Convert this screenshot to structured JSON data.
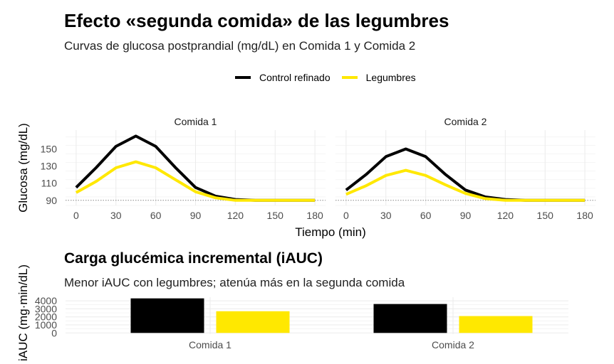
{
  "title": "Efecto «segunda comida» de las legumbres",
  "subtitle": "Curvas de glucosa postprandial (mg/dL) en Comida 1 y Comida 2",
  "colors": {
    "control": "#000000",
    "legumes": "#FFE800",
    "grid": "#EBEBEB",
    "axis_text": "#4D4D4D"
  },
  "legend": [
    {
      "label": "Control refinado",
      "color": "#000000"
    },
    {
      "label": "Legumbres",
      "color": "#FFE800"
    }
  ],
  "chart_data": [
    {
      "type": "line",
      "facets": [
        "Comida 1",
        "Comida 2"
      ],
      "xlabel": "Tiempo (min)",
      "ylabel": "Glucosa (mg/dL)",
      "x": [
        0,
        15,
        30,
        45,
        60,
        75,
        90,
        105,
        120,
        135,
        150,
        165,
        180
      ],
      "xticks": [
        0,
        30,
        60,
        90,
        120,
        150,
        180
      ],
      "yticks": [
        90,
        110,
        130,
        150
      ],
      "xlim": [
        -8,
        188
      ],
      "ylim": [
        84,
        172
      ],
      "baseline": 90,
      "series": [
        {
          "name": "Control refinado",
          "facet": "Comida 1",
          "values": [
            105,
            128,
            153,
            165,
            153,
            128,
            105,
            95,
            91,
            90,
            90,
            90,
            90
          ]
        },
        {
          "name": "Legumbres",
          "facet": "Comida 1",
          "values": [
            99,
            112,
            128,
            135,
            128,
            114,
            100,
            93,
            90,
            90,
            90,
            90,
            90
          ]
        },
        {
          "name": "Control refinado",
          "facet": "Comida 2",
          "values": [
            102,
            120,
            141,
            150,
            141,
            120,
            102,
            94,
            91,
            90,
            90,
            90,
            90
          ]
        },
        {
          "name": "Legumbres",
          "facet": "Comida 2",
          "values": [
            97,
            107,
            119,
            125,
            119,
            108,
            98,
            92,
            90,
            90,
            90,
            90,
            90
          ]
        }
      ],
      "grid": true,
      "legend_position": "top"
    },
    {
      "type": "bar",
      "title": "Carga glucémica incremental (iAUC)",
      "subtitle": "Menor iAUC con legumbres; atenúa más en la segunda comida",
      "ylabel": "iAUC (mg·min/dL)",
      "categories": [
        "Comida 1",
        "Comida 2"
      ],
      "yticks": [
        0,
        1000,
        2000,
        3000,
        4000
      ],
      "ylim": [
        -150,
        4450
      ],
      "series": [
        {
          "name": "Control refinado",
          "values": [
            4300,
            3600
          ]
        },
        {
          "name": "Legumbres",
          "values": [
            2700,
            2100
          ]
        }
      ],
      "grid": true
    }
  ]
}
